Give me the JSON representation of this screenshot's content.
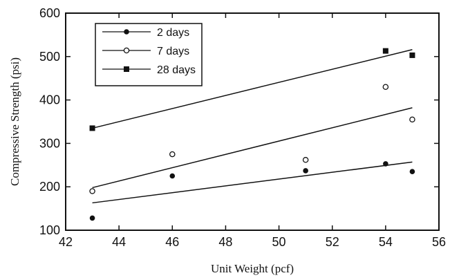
{
  "chart_data": {
    "type": "scatter",
    "xlabel": "Unit Weight (pcf)",
    "ylabel": "Compressive Strength (psi)",
    "xlim": [
      42,
      56
    ],
    "ylim": [
      100,
      600
    ],
    "x_ticks": [
      42,
      44,
      46,
      48,
      50,
      52,
      54,
      56
    ],
    "y_ticks": [
      100,
      200,
      300,
      400,
      500,
      600
    ],
    "grid": false,
    "legend_position": "top-left",
    "series": [
      {
        "name": "2 days",
        "marker": "filled-circle",
        "points": [
          {
            "x": 43,
            "y": 128
          },
          {
            "x": 46,
            "y": 225
          },
          {
            "x": 51,
            "y": 237
          },
          {
            "x": 54,
            "y": 253
          },
          {
            "x": 55,
            "y": 235
          }
        ],
        "fit_line": [
          {
            "x": 43,
            "y": 163
          },
          {
            "x": 55,
            "y": 257
          }
        ]
      },
      {
        "name": "7 days",
        "marker": "open-circle",
        "points": [
          {
            "x": 43,
            "y": 190
          },
          {
            "x": 46,
            "y": 275
          },
          {
            "x": 51,
            "y": 262
          },
          {
            "x": 54,
            "y": 430
          },
          {
            "x": 55,
            "y": 355
          }
        ],
        "fit_line": [
          {
            "x": 43,
            "y": 198
          },
          {
            "x": 55,
            "y": 382
          }
        ]
      },
      {
        "name": "28 days",
        "marker": "filled-square",
        "points": [
          {
            "x": 43,
            "y": 335
          },
          {
            "x": 54,
            "y": 513
          },
          {
            "x": 55,
            "y": 503
          }
        ],
        "fit_line": [
          {
            "x": 43,
            "y": 335
          },
          {
            "x": 55,
            "y": 516
          }
        ]
      }
    ]
  }
}
